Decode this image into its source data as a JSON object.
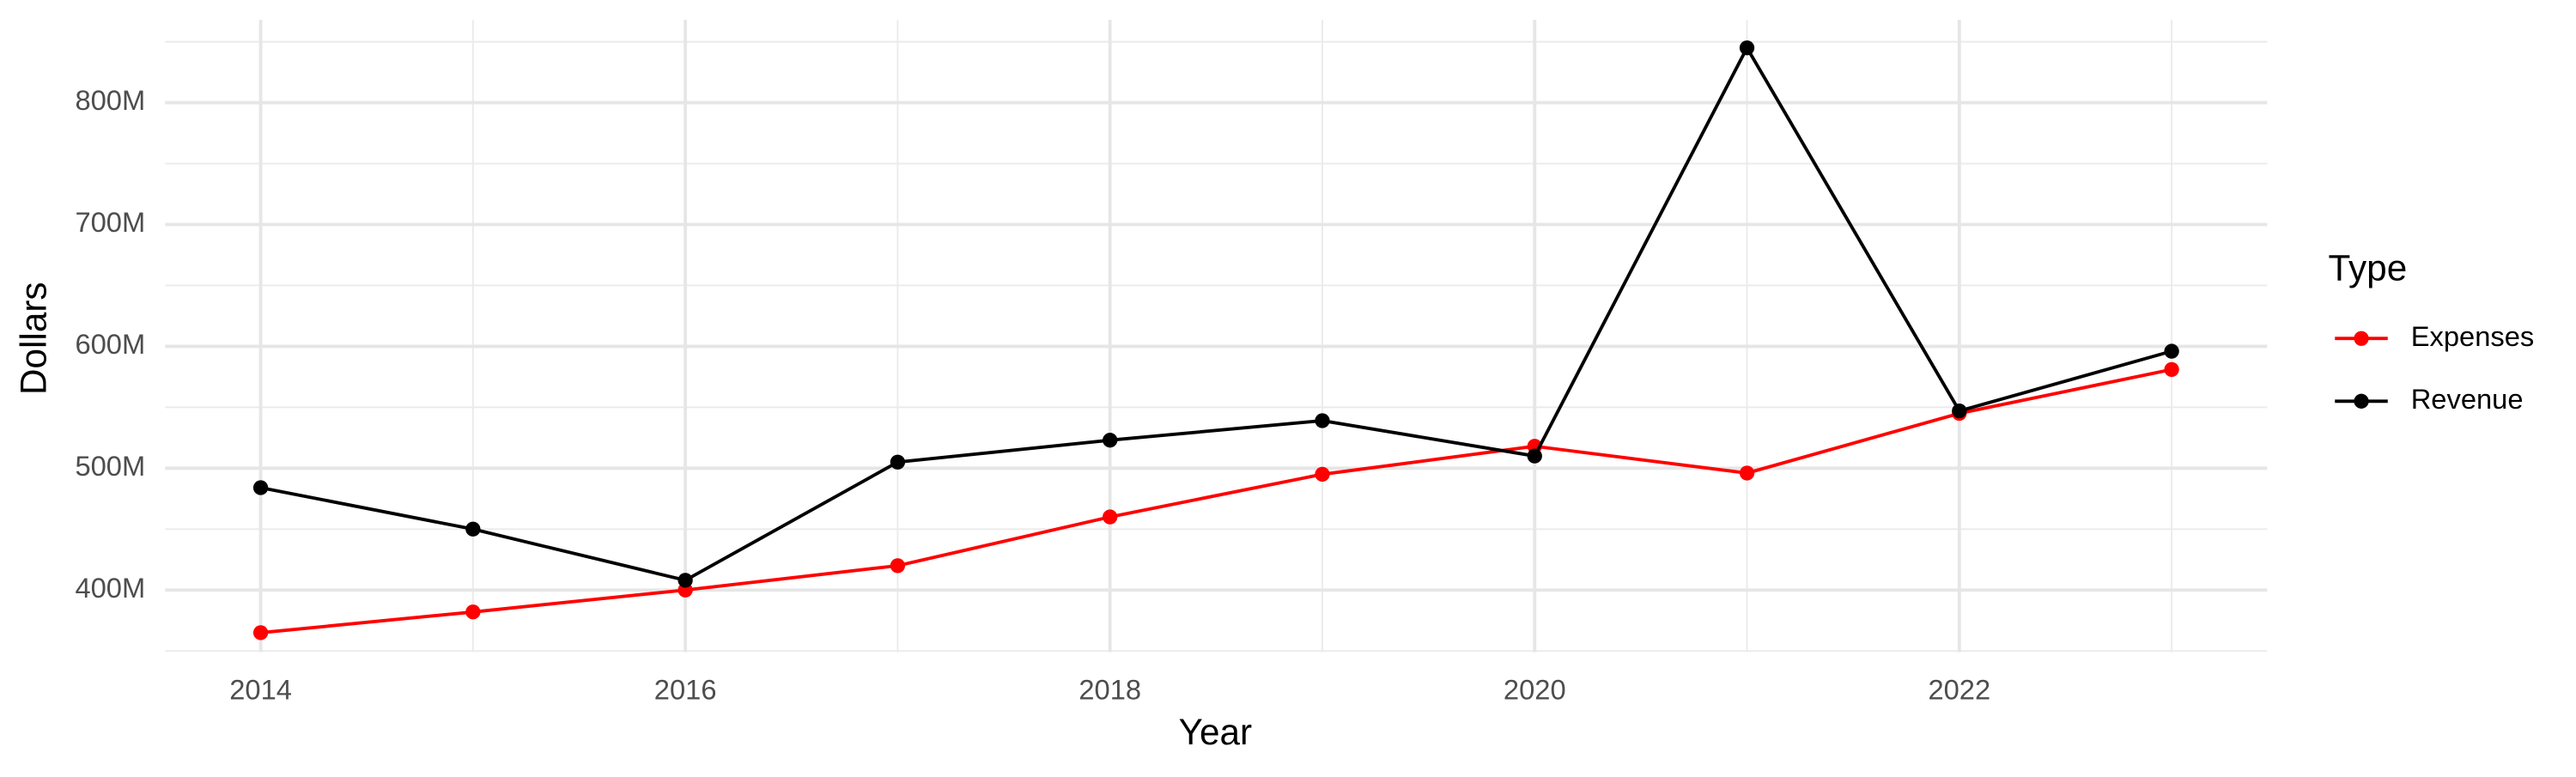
{
  "chart_data": {
    "type": "line",
    "x_label": "Year",
    "y_label": "Dollars",
    "legend_title": "Type",
    "legend_position": "right",
    "grid": true,
    "x": [
      2014,
      2015,
      2016,
      2017,
      2018,
      2019,
      2020,
      2021,
      2022,
      2023
    ],
    "series": [
      {
        "name": "Expenses",
        "color": "#ff0000",
        "values": [
          365000000,
          382000000,
          400000000,
          420000000,
          460000000,
          495000000,
          518000000,
          496000000,
          545000000,
          581000000
        ]
      },
      {
        "name": "Revenue",
        "color": "#000000",
        "values": [
          484000000,
          450000000,
          408000000,
          505000000,
          523000000,
          539000000,
          510000000,
          845000000,
          547000000,
          596000000
        ]
      }
    ],
    "xlim": [
      2013.55,
      2023.45
    ],
    "xticks": [
      2014,
      2016,
      2018,
      2020,
      2022
    ],
    "x_minor_ticks": [
      2015,
      2017,
      2019,
      2021,
      2023
    ],
    "ylim": [
      349000000,
      868000000
    ],
    "yticks": [
      {
        "value": 400000000,
        "label": "400M"
      },
      {
        "value": 500000000,
        "label": "500M"
      },
      {
        "value": 600000000,
        "label": "600M"
      },
      {
        "value": 700000000,
        "label": "700M"
      },
      {
        "value": 800000000,
        "label": "800M"
      }
    ],
    "y_minor_ticks": [
      350000000,
      450000000,
      550000000,
      650000000,
      750000000,
      850000000
    ]
  }
}
